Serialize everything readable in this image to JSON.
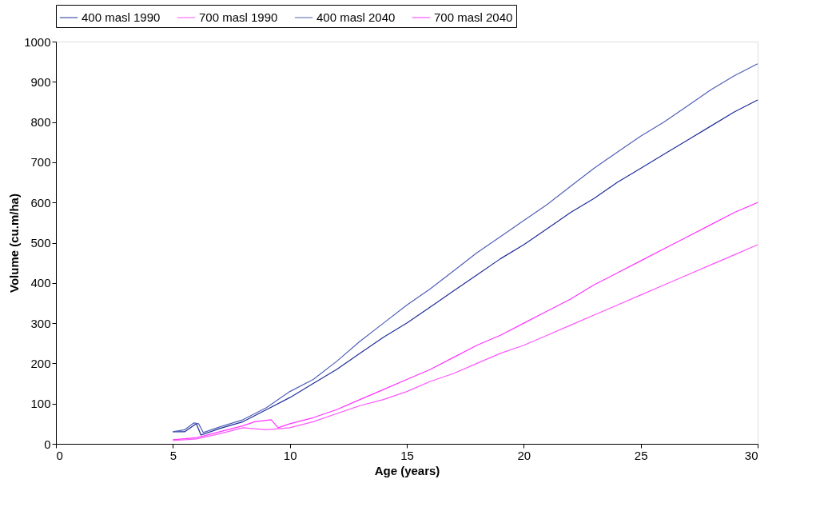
{
  "chart_data": {
    "type": "line",
    "xlabel": "Age (years)",
    "ylabel": "Volume (cu.m/ha)",
    "xlim": [
      0,
      30
    ],
    "xticks": [
      0,
      5,
      10,
      15,
      20,
      25,
      30
    ],
    "ylim": [
      0,
      1000
    ],
    "yticks": [
      0,
      100,
      200,
      300,
      400,
      500,
      600,
      700,
      800,
      900,
      1000
    ],
    "grid": false,
    "legend": "top",
    "marker": "none",
    "line_style": "solid",
    "series": [
      {
        "name": "400 masl 1990",
        "color": "#1f2f99",
        "x": [
          5,
          5.5,
          6,
          6.2,
          7,
          8,
          9,
          10,
          11,
          12,
          13,
          14,
          15,
          16,
          17,
          18,
          19,
          20,
          21,
          22,
          23,
          24,
          25,
          26,
          27,
          28,
          29,
          30
        ],
        "values": [
          30,
          30,
          50,
          22,
          38,
          55,
          85,
          115,
          150,
          185,
          225,
          265,
          300,
          340,
          380,
          420,
          460,
          495,
          535,
          575,
          610,
          650,
          685,
          720,
          755,
          790,
          825,
          855
        ]
      },
      {
        "name": "700 masl 1990",
        "color": "#ff55ff",
        "x": [
          5,
          6,
          7,
          8,
          9,
          10,
          11,
          12,
          13,
          14,
          15,
          16,
          17,
          18,
          19,
          20,
          21,
          22,
          23,
          24,
          25,
          26,
          27,
          28,
          29,
          30
        ],
        "values": [
          8,
          12,
          25,
          40,
          35,
          40,
          55,
          75,
          95,
          110,
          130,
          155,
          175,
          200,
          225,
          245,
          270,
          295,
          320,
          345,
          370,
          395,
          420,
          445,
          470,
          495
        ]
      },
      {
        "name": "400 masl 2040",
        "color": "#5060b8",
        "x": [
          5,
          5.5,
          5.9,
          6.1,
          6.3,
          7,
          8,
          9,
          10,
          11,
          12,
          13,
          14,
          15,
          16,
          17,
          18,
          19,
          20,
          21,
          22,
          23,
          24,
          25,
          26,
          27,
          28,
          29,
          30
        ],
        "values": [
          30,
          35,
          52,
          50,
          28,
          42,
          60,
          90,
          130,
          160,
          205,
          255,
          300,
          345,
          385,
          430,
          475,
          515,
          555,
          595,
          640,
          685,
          725,
          765,
          800,
          840,
          880,
          915,
          945
        ]
      },
      {
        "name": "700 masl 2040",
        "color": "#ff33ff",
        "x": [
          5,
          6,
          7,
          8,
          8.5,
          9.2,
          9.5,
          10,
          11,
          12,
          13,
          14,
          15,
          16,
          17,
          18,
          19,
          20,
          21,
          22,
          23,
          24,
          25,
          26,
          27,
          28,
          29,
          30
        ],
        "values": [
          10,
          15,
          30,
          45,
          55,
          60,
          40,
          50,
          65,
          85,
          110,
          135,
          160,
          185,
          215,
          245,
          270,
          300,
          330,
          360,
          395,
          425,
          455,
          485,
          515,
          545,
          575,
          600
        ]
      }
    ]
  }
}
